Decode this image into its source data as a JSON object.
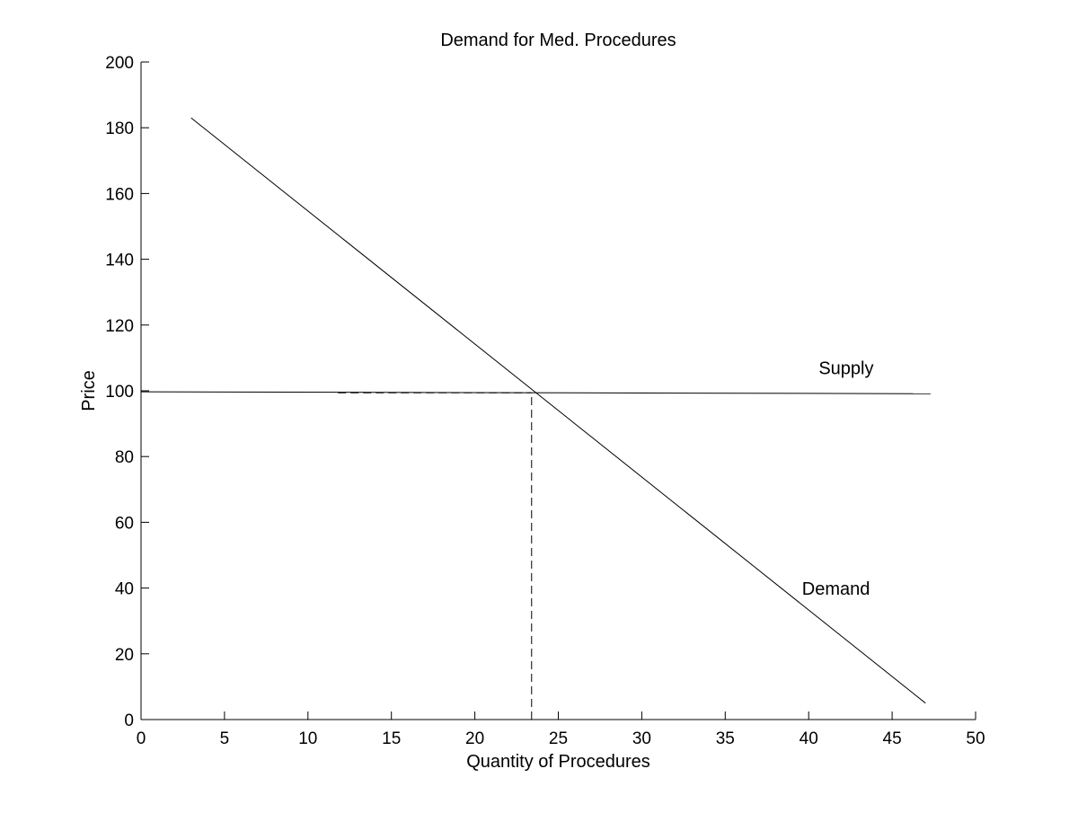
{
  "chart_data": {
    "type": "line",
    "title": "Demand for Med. Procedures",
    "xlabel": "Quantity of Procedures",
    "ylabel": "Price",
    "xlim": [
      0,
      50
    ],
    "ylim": [
      0,
      200
    ],
    "xticks": [
      0,
      5,
      10,
      15,
      20,
      25,
      30,
      35,
      40,
      45,
      50
    ],
    "yticks": [
      0,
      20,
      40,
      60,
      80,
      100,
      120,
      140,
      160,
      180,
      200
    ],
    "grid": false,
    "series": [
      {
        "name": "Demand",
        "style": "solid",
        "x": [
          3,
          47
        ],
        "y": [
          183,
          5
        ]
      },
      {
        "name": "Supply",
        "style": "solid",
        "x": [
          0,
          47.3
        ],
        "y": [
          99.7,
          99.1
        ]
      }
    ],
    "reference_lines": [
      {
        "style": "dashed",
        "x": [
          11.8,
          23.4
        ],
        "y": [
          99.4,
          99.4
        ]
      },
      {
        "style": "dashed",
        "x": [
          23.4,
          23.4
        ],
        "y": [
          0,
          99.4
        ]
      }
    ],
    "annotations": [
      {
        "text": "Supply",
        "x": 40.6,
        "y": 105
      },
      {
        "text": "Demand",
        "x": 39.6,
        "y": 38
      }
    ],
    "colors": {
      "line": "#000000",
      "background": "#ffffff"
    }
  }
}
